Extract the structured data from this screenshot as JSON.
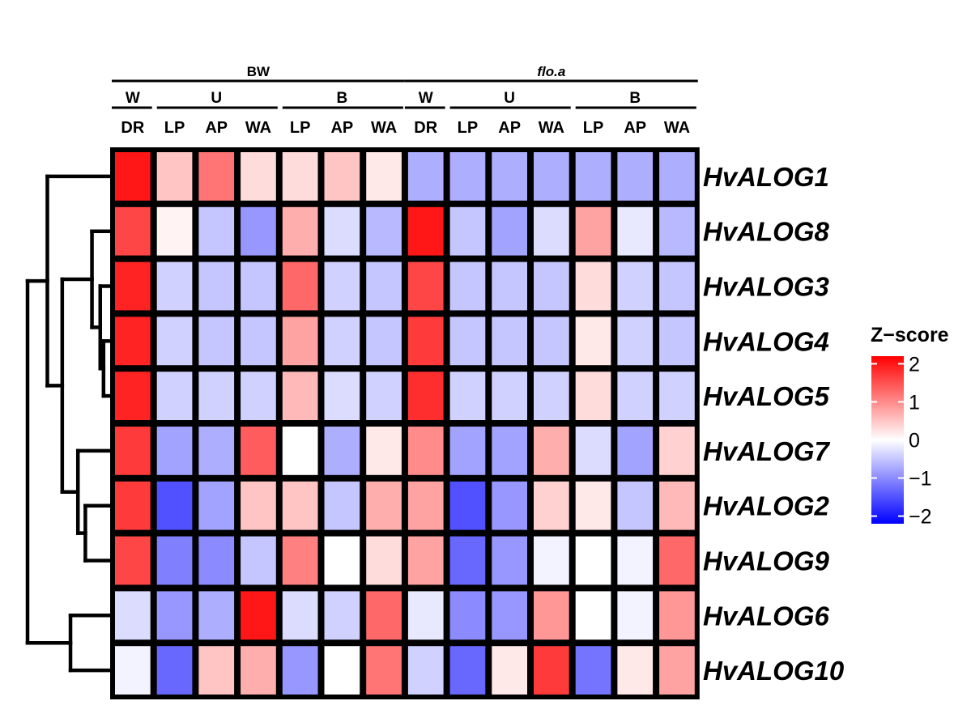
{
  "chart_data": {
    "type": "heatmap",
    "title": "",
    "groups": [
      {
        "name": "BW",
        "italic": false,
        "subgroups": [
          {
            "name": "W",
            "columns": [
              "DR"
            ]
          },
          {
            "name": "U",
            "columns": [
              "LP",
              "AP",
              "WA"
            ]
          },
          {
            "name": "B",
            "columns": [
              "LP",
              "AP",
              "WA"
            ]
          }
        ]
      },
      {
        "name": "flo.a",
        "italic": true,
        "subgroups": [
          {
            "name": "W",
            "columns": [
              "DR"
            ]
          },
          {
            "name": "U",
            "columns": [
              "LP",
              "AP",
              "WA"
            ]
          },
          {
            "name": "B",
            "columns": [
              "LP",
              "AP",
              "WA"
            ]
          }
        ]
      }
    ],
    "columns": [
      "DR",
      "LP",
      "AP",
      "WA",
      "LP",
      "AP",
      "WA",
      "DR",
      "LP",
      "AP",
      "WA",
      "LP",
      "AP",
      "WA"
    ],
    "rows": [
      "HvALOG1",
      "HvALOG8",
      "HvALOG3",
      "HvALOG4",
      "HvALOG5",
      "HvALOG7",
      "HvALOG2",
      "HvALOG9",
      "HvALOG6",
      "HvALOG10"
    ],
    "values": [
      [
        2.0,
        0.5,
        1.2,
        0.3,
        0.3,
        0.5,
        0.2,
        -0.7,
        -0.7,
        -0.7,
        -0.7,
        -0.7,
        -0.7,
        -0.7
      ],
      [
        1.6,
        0.1,
        -0.5,
        -0.9,
        0.7,
        -0.3,
        -0.6,
        2.0,
        -0.5,
        -0.8,
        -0.3,
        0.8,
        -0.2,
        -0.6
      ],
      [
        1.9,
        -0.4,
        -0.5,
        -0.5,
        1.3,
        -0.4,
        -0.5,
        1.6,
        -0.5,
        -0.5,
        -0.5,
        0.3,
        -0.4,
        -0.5
      ],
      [
        1.9,
        -0.4,
        -0.5,
        -0.5,
        0.8,
        -0.4,
        -0.5,
        1.7,
        -0.5,
        -0.5,
        -0.5,
        0.2,
        -0.4,
        -0.5
      ],
      [
        1.9,
        -0.4,
        -0.4,
        -0.4,
        0.6,
        -0.3,
        -0.4,
        1.8,
        -0.4,
        -0.4,
        -0.4,
        0.3,
        -0.4,
        -0.4
      ],
      [
        1.7,
        -0.8,
        -0.7,
        1.4,
        0.0,
        -0.7,
        0.2,
        1.0,
        -0.8,
        -0.8,
        0.7,
        -0.3,
        -0.8,
        0.4
      ],
      [
        1.7,
        -1.5,
        -0.8,
        0.5,
        0.5,
        -0.5,
        0.7,
        0.8,
        -1.5,
        -0.9,
        0.4,
        0.2,
        -0.5,
        0.6
      ],
      [
        1.6,
        -1.1,
        -1.0,
        -0.5,
        1.1,
        0.0,
        0.3,
        0.8,
        -1.3,
        -0.9,
        -0.1,
        0.0,
        -0.1,
        1.3
      ],
      [
        -0.3,
        -0.9,
        -0.7,
        2.0,
        -0.3,
        -0.4,
        1.3,
        -0.2,
        -1.0,
        -0.9,
        0.9,
        0.0,
        -0.1,
        0.9
      ],
      [
        -0.1,
        -1.3,
        0.5,
        0.7,
        -0.9,
        0.0,
        1.2,
        -0.4,
        -1.3,
        0.2,
        1.7,
        -1.2,
        0.2,
        0.8
      ]
    ],
    "zlim": [
      -2.2,
      2.2
    ],
    "colormap": {
      "low": "#0000ff",
      "mid": "#ffffff",
      "high": "#ff0000"
    },
    "legend": {
      "title": "Z−score",
      "ticks": [
        2,
        1,
        0,
        -1,
        -2
      ],
      "tick_labels": [
        "2",
        "1",
        "0",
        "−1",
        "−2"
      ],
      "placement": "right"
    },
    "dendrogram": {
      "side": "left",
      "leaf_order": [
        0,
        1,
        2,
        3,
        4,
        5,
        6,
        7,
        8,
        9
      ],
      "merges": [
        {
          "left": 3,
          "right": 4,
          "height": 0.08
        },
        {
          "left": 2,
          "right": 10,
          "height": 0.12
        },
        {
          "left": 1,
          "right": 11,
          "height": 0.22
        },
        {
          "left": 6,
          "right": 7,
          "height": 0.3
        },
        {
          "left": 5,
          "right": 13,
          "height": 0.39
        },
        {
          "left": 12,
          "right": 14,
          "height": 0.58
        },
        {
          "left": 8,
          "right": 9,
          "height": 0.48
        },
        {
          "left": 0,
          "right": 15,
          "height": 0.76
        },
        {
          "left": 16,
          "right": 17,
          "height": 1.0
        }
      ]
    }
  }
}
